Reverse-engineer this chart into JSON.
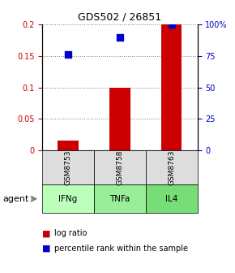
{
  "title": "GDS502 / 26851",
  "categories": [
    "IFNg",
    "TNFa",
    "IL4"
  ],
  "sample_ids": [
    "GSM8753",
    "GSM8758",
    "GSM8763"
  ],
  "log_ratios": [
    0.015,
    0.1,
    0.2
  ],
  "percentile_ranks": [
    0.76,
    0.9,
    1.0
  ],
  "bar_color": "#cc0000",
  "square_color": "#0000cc",
  "ylim_left": [
    0,
    0.2
  ],
  "ylim_right": [
    0,
    1.0
  ],
  "yticks_left": [
    0,
    0.05,
    0.1,
    0.15,
    0.2
  ],
  "ytick_labels_left": [
    "0",
    "0.05",
    "0.1",
    "0.15",
    "0.2"
  ],
  "yticks_right": [
    0,
    0.25,
    0.5,
    0.75,
    1.0
  ],
  "ytick_labels_right": [
    "0",
    "25",
    "50",
    "75",
    "100%"
  ],
  "agent_colors": [
    "#bbffbb",
    "#99ee99",
    "#77dd77"
  ],
  "sample_box_color": "#dddddd",
  "bar_width": 0.4,
  "legend_log_ratio": "log ratio",
  "legend_percentile": "percentile rank within the sample"
}
